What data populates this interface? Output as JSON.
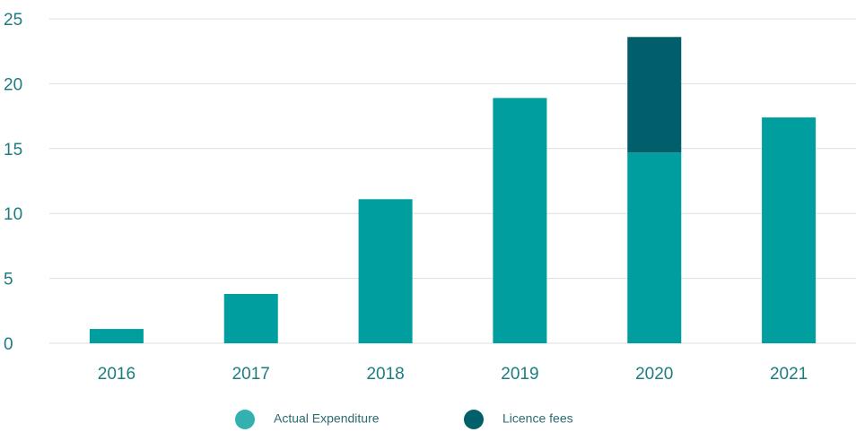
{
  "chart_data": {
    "type": "stacked_bar",
    "categories": [
      "2016",
      "2017",
      "2018",
      "2019",
      "2020",
      "2021"
    ],
    "series": [
      {
        "name": "Actual Expenditure",
        "color": "#009e9e",
        "values": [
          1.1,
          3.8,
          11.1,
          18.9,
          14.7,
          17.4
        ]
      },
      {
        "name": "Licence fees",
        "color": "#005f6b",
        "values": [
          null,
          null,
          null,
          null,
          8.9,
          null
        ]
      }
    ],
    "ylim": [
      0,
      25
    ],
    "yticks": [
      0,
      5,
      10,
      15,
      20,
      25
    ],
    "grid": true,
    "legend": "bottom"
  }
}
